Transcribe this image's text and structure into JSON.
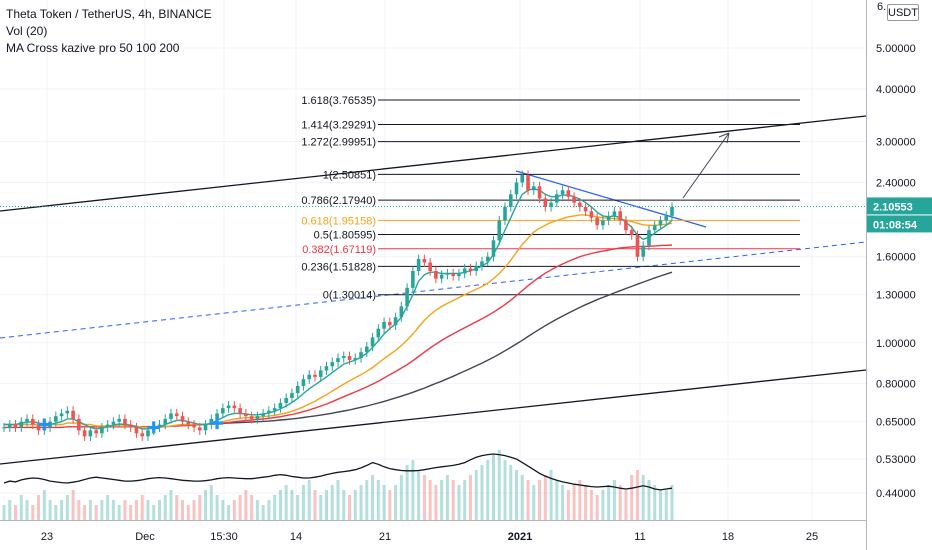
{
  "legend": {
    "title": "Theta Token / TetherUS, 4h, BINANCE",
    "indicator_volume": "Vol (20)",
    "indicator_ma": "MA Cross kazive pro 50 100 200"
  },
  "price_axis": {
    "currency": "USDT",
    "top_partial": "6.",
    "last_price": "2.10553",
    "countdown": "01:08:54",
    "last_price_color": "#26a69a",
    "countdown_color": "#26a69a"
  },
  "chart_data": {
    "type": "line",
    "scale": "log",
    "symbol": "THETAUSDT",
    "ylim": [
      0.38,
      6.5
    ],
    "yticks": [
      0.44,
      0.53,
      0.65,
      0.8,
      1.0,
      1.3,
      1.6,
      2.4,
      3.0,
      4.0,
      5.0
    ],
    "ytick_labels": [
      "0.44000",
      "0.53000",
      "0.65000",
      "0.80000",
      "1.00000",
      "1.30000",
      "1.60000",
      "2.40000",
      "3.00000",
      "4.00000",
      "5.00000"
    ],
    "xtick_labels": [
      "23",
      "Dec",
      "15:30",
      "14",
      "21",
      "2021",
      "11",
      "18",
      "25"
    ],
    "fibonacci": [
      {
        "label": "1.618(3.76535)",
        "value": 3.76535,
        "color": "#131722"
      },
      {
        "label": "1.414(3.29291)",
        "value": 3.29291,
        "color": "#131722"
      },
      {
        "label": "1.272(2.99951)",
        "value": 2.99951,
        "color": "#131722"
      },
      {
        "label": "1(2.50851)",
        "value": 2.50851,
        "color": "#131722"
      },
      {
        "label": "0.786(2.17940)",
        "value": 2.1794,
        "color": "#131722"
      },
      {
        "label": "0.618(1.95158)",
        "value": 1.95158,
        "color": "#f7a21b"
      },
      {
        "label": "0.5(1.80595)",
        "value": 1.80595,
        "color": "#131722"
      },
      {
        "label": "0.382(1.67119)",
        "value": 1.67119,
        "color": "#f23645"
      },
      {
        "label": "0.236(1.51828)",
        "value": 1.51828,
        "color": "#131722"
      },
      {
        "label": "0(1.30014)",
        "value": 1.30014,
        "color": "#131722"
      }
    ],
    "price_series": {
      "name": "",
      "values": [
        0.63,
        0.64,
        0.63,
        0.65,
        0.66,
        0.64,
        0.62,
        0.63,
        0.65,
        0.67,
        0.68,
        0.69,
        0.66,
        0.62,
        0.6,
        0.62,
        0.61,
        0.63,
        0.64,
        0.65,
        0.66,
        0.64,
        0.63,
        0.61,
        0.6,
        0.62,
        0.63,
        0.64,
        0.66,
        0.68,
        0.67,
        0.65,
        0.64,
        0.63,
        0.62,
        0.64,
        0.66,
        0.68,
        0.7,
        0.71,
        0.7,
        0.68,
        0.67,
        0.66,
        0.67,
        0.68,
        0.69,
        0.7,
        0.72,
        0.74,
        0.76,
        0.79,
        0.82,
        0.84,
        0.83,
        0.86,
        0.88,
        0.9,
        0.92,
        0.93,
        0.91,
        0.92,
        0.95,
        0.98,
        1.03,
        1.08,
        1.12,
        1.1,
        1.15,
        1.22,
        1.35,
        1.48,
        1.58,
        1.55,
        1.48,
        1.42,
        1.45,
        1.46,
        1.44,
        1.46,
        1.5,
        1.48,
        1.52,
        1.56,
        1.6,
        1.75,
        1.95,
        2.1,
        2.25,
        2.4,
        2.5,
        2.3,
        2.35,
        2.2,
        2.1,
        2.15,
        2.25,
        2.3,
        2.22,
        2.15,
        2.1,
        2.05,
        1.98,
        1.9,
        1.95,
        2.0,
        2.05,
        1.95,
        1.85,
        1.8,
        1.6,
        1.7,
        1.85,
        1.9,
        1.95,
        2.0,
        2.1
      ]
    },
    "volume_series": {
      "values": [
        3,
        4,
        3,
        5,
        4,
        3,
        5,
        6,
        4,
        3,
        4,
        5,
        6,
        4,
        3,
        4,
        3,
        4,
        5,
        4,
        3,
        4,
        3,
        4,
        5,
        4,
        3,
        4,
        5,
        6,
        5,
        4,
        3,
        4,
        5,
        6,
        7,
        5,
        4,
        3,
        4,
        5,
        6,
        5,
        4,
        3,
        4,
        5,
        6,
        7,
        6,
        5,
        7,
        8,
        6,
        5,
        6,
        7,
        8,
        6,
        5,
        6,
        7,
        8,
        9,
        8,
        7,
        6,
        7,
        9,
        11,
        12,
        10,
        9,
        8,
        7,
        8,
        9,
        8,
        7,
        8,
        9,
        10,
        11,
        12,
        13,
        14,
        12,
        11,
        10,
        9,
        8,
        7,
        8,
        9,
        10,
        8,
        7,
        6,
        7,
        8,
        7,
        6,
        5,
        6,
        7,
        8,
        7,
        6,
        9,
        10,
        9,
        8,
        7,
        6,
        6,
        7
      ]
    },
    "volume_ma": {
      "values": [
        0.465,
        0.47,
        0.468,
        0.473,
        0.476,
        0.478,
        0.477,
        0.474,
        0.47,
        0.468,
        0.466,
        0.465,
        0.467,
        0.47,
        0.474,
        0.478,
        0.48,
        0.478,
        0.476,
        0.474,
        0.472,
        0.47,
        0.47,
        0.471,
        0.473,
        0.476,
        0.478,
        0.479,
        0.478,
        0.476,
        0.474,
        0.472,
        0.471,
        0.47,
        0.47,
        0.471,
        0.473,
        0.476,
        0.478,
        0.479,
        0.478,
        0.477,
        0.476,
        0.476,
        0.478,
        0.48,
        0.482,
        0.485,
        0.487,
        0.485,
        0.482,
        0.48,
        0.478,
        0.478,
        0.48,
        0.483,
        0.487,
        0.49,
        0.493,
        0.495,
        0.497,
        0.5,
        0.505,
        0.512,
        0.52,
        0.515,
        0.508,
        0.503,
        0.5,
        0.498,
        0.497,
        0.497,
        0.498,
        0.5,
        0.503,
        0.506,
        0.508,
        0.51,
        0.512,
        0.515,
        0.52,
        0.528,
        0.535,
        0.54,
        0.543,
        0.545,
        0.543,
        0.54,
        0.535,
        0.53,
        0.52,
        0.51,
        0.5,
        0.49,
        0.483,
        0.477,
        0.472,
        0.468,
        0.465,
        0.462,
        0.46,
        0.458,
        0.456,
        0.455,
        0.456,
        0.457,
        0.455,
        0.452,
        0.45,
        0.452,
        0.455,
        0.458,
        0.455,
        0.45,
        0.448,
        0.45,
        0.452
      ]
    },
    "ma_fast": {
      "color": "#26a69a",
      "values": [
        0.64,
        0.64,
        0.64,
        0.645,
        0.648,
        0.65,
        0.645,
        0.64,
        0.64,
        0.645,
        0.65,
        0.66,
        0.66,
        0.65,
        0.64,
        0.63,
        0.625,
        0.628,
        0.632,
        0.638,
        0.642,
        0.64,
        0.638,
        0.632,
        0.625,
        0.625,
        0.628,
        0.632,
        0.64,
        0.648,
        0.655,
        0.655,
        0.65,
        0.645,
        0.64,
        0.64,
        0.645,
        0.655,
        0.665,
        0.675,
        0.68,
        0.68,
        0.678,
        0.675,
        0.675,
        0.678,
        0.682,
        0.688,
        0.697,
        0.708,
        0.722,
        0.738,
        0.758,
        0.778,
        0.795,
        0.812,
        0.83,
        0.85,
        0.87,
        0.89,
        0.9,
        0.91,
        0.925,
        0.945,
        0.975,
        1.01,
        1.05,
        1.08,
        1.11,
        1.15,
        1.22,
        1.3,
        1.4,
        1.45,
        1.47,
        1.47,
        1.46,
        1.46,
        1.46,
        1.46,
        1.47,
        1.48,
        1.5,
        1.52,
        1.55,
        1.62,
        1.72,
        1.85,
        1.98,
        2.12,
        2.25,
        2.3,
        2.32,
        2.3,
        2.25,
        2.22,
        2.22,
        2.24,
        2.24,
        2.22,
        2.19,
        2.15,
        2.1,
        2.04,
        2.0,
        1.99,
        2.0,
        1.98,
        1.93,
        1.88,
        1.8,
        1.76,
        1.78,
        1.82,
        1.86,
        1.9,
        1.95
      ]
    },
    "ma_50": {
      "color": "#f7a21b",
      "values": [
        0.64,
        0.64,
        0.64,
        0.64,
        0.64,
        0.64,
        0.64,
        0.64,
        0.64,
        0.64,
        0.64,
        0.645,
        0.645,
        0.645,
        0.64,
        0.64,
        0.635,
        0.635,
        0.635,
        0.635,
        0.635,
        0.635,
        0.635,
        0.635,
        0.63,
        0.63,
        0.63,
        0.63,
        0.632,
        0.635,
        0.638,
        0.64,
        0.64,
        0.64,
        0.64,
        0.64,
        0.642,
        0.645,
        0.65,
        0.655,
        0.66,
        0.662,
        0.664,
        0.665,
        0.666,
        0.668,
        0.67,
        0.673,
        0.677,
        0.682,
        0.688,
        0.696,
        0.705,
        0.716,
        0.727,
        0.74,
        0.753,
        0.768,
        0.783,
        0.798,
        0.812,
        0.826,
        0.84,
        0.856,
        0.874,
        0.895,
        0.917,
        0.938,
        0.96,
        0.985,
        1.015,
        1.05,
        1.09,
        1.13,
        1.165,
        1.195,
        1.22,
        1.24,
        1.26,
        1.28,
        1.3,
        1.32,
        1.34,
        1.36,
        1.385,
        1.42,
        1.46,
        1.51,
        1.57,
        1.64,
        1.71,
        1.77,
        1.83,
        1.87,
        1.9,
        1.93,
        1.95,
        1.97,
        1.99,
        2.0,
        2.01,
        2.01,
        2.0,
        1.99,
        1.98,
        1.975,
        1.97,
        1.965,
        1.955,
        1.94,
        1.92,
        1.905,
        1.9,
        1.9,
        1.905,
        1.91,
        1.92
      ]
    },
    "ma_100": {
      "color": "#f23645",
      "values": [
        0.63,
        0.63,
        0.63,
        0.63,
        0.63,
        0.63,
        0.63,
        0.63,
        0.63,
        0.63,
        0.63,
        0.632,
        0.632,
        0.632,
        0.632,
        0.632,
        0.632,
        0.632,
        0.632,
        0.632,
        0.632,
        0.632,
        0.632,
        0.632,
        0.632,
        0.632,
        0.632,
        0.632,
        0.633,
        0.634,
        0.635,
        0.636,
        0.637,
        0.638,
        0.639,
        0.64,
        0.641,
        0.643,
        0.645,
        0.647,
        0.65,
        0.652,
        0.654,
        0.656,
        0.658,
        0.66,
        0.662,
        0.665,
        0.668,
        0.672,
        0.676,
        0.681,
        0.687,
        0.693,
        0.7,
        0.708,
        0.716,
        0.725,
        0.735,
        0.745,
        0.755,
        0.765,
        0.775,
        0.786,
        0.798,
        0.811,
        0.825,
        0.84,
        0.855,
        0.871,
        0.888,
        0.907,
        0.928,
        0.95,
        0.972,
        0.993,
        1.013,
        1.032,
        1.05,
        1.068,
        1.086,
        1.104,
        1.122,
        1.14,
        1.16,
        1.182,
        1.206,
        1.232,
        1.262,
        1.295,
        1.33,
        1.365,
        1.4,
        1.432,
        1.462,
        1.49,
        1.515,
        1.538,
        1.56,
        1.58,
        1.6,
        1.615,
        1.628,
        1.64,
        1.65,
        1.66,
        1.67,
        1.678,
        1.684,
        1.688,
        1.69,
        1.692,
        1.694,
        1.697,
        1.7,
        1.703,
        1.706
      ]
    },
    "ma_200": {
      "color": "#434651",
      "values": [
        null,
        null,
        null,
        null,
        null,
        null,
        null,
        null,
        null,
        null,
        null,
        null,
        null,
        null,
        null,
        null,
        null,
        null,
        null,
        null,
        null,
        null,
        null,
        null,
        null,
        null,
        null,
        null,
        null,
        null,
        null,
        null,
        null,
        null,
        0.64,
        0.641,
        0.642,
        0.643,
        0.644,
        0.645,
        0.646,
        0.647,
        0.648,
        0.649,
        0.65,
        0.651,
        0.652,
        0.654,
        0.656,
        0.658,
        0.66,
        0.662,
        0.665,
        0.668,
        0.671,
        0.674,
        0.677,
        0.681,
        0.685,
        0.689,
        0.693,
        0.698,
        0.703,
        0.708,
        0.714,
        0.72,
        0.726,
        0.733,
        0.74,
        0.747,
        0.755,
        0.763,
        0.772,
        0.781,
        0.791,
        0.801,
        0.811,
        0.822,
        0.833,
        0.845,
        0.857,
        0.869,
        0.882,
        0.895,
        0.909,
        0.924,
        0.94,
        0.957,
        0.975,
        0.994,
        1.014,
        1.035,
        1.056,
        1.077,
        1.098,
        1.118,
        1.138,
        1.157,
        1.176,
        1.195,
        1.213,
        1.231,
        1.248,
        1.265,
        1.281,
        1.297,
        1.313,
        1.329,
        1.345,
        1.361,
        1.377,
        1.393,
        1.409,
        1.425,
        1.44,
        1.455,
        1.47
      ]
    },
    "cross_markers_at_index": [
      7,
      26,
      37
    ],
    "cross_marker_color": "#2196f3",
    "trendlines": [
      {
        "name": "upper-channel",
        "style": "solid",
        "color": "#131722"
      },
      {
        "name": "lower-channel",
        "style": "solid",
        "color": "#131722"
      },
      {
        "name": "dashed-support",
        "style": "dashed",
        "color": "#2962ff"
      },
      {
        "name": "descending-resistance",
        "style": "solid",
        "color": "#2962ff"
      },
      {
        "name": "target-arrow",
        "style": "solid",
        "color": "#434651"
      }
    ]
  }
}
